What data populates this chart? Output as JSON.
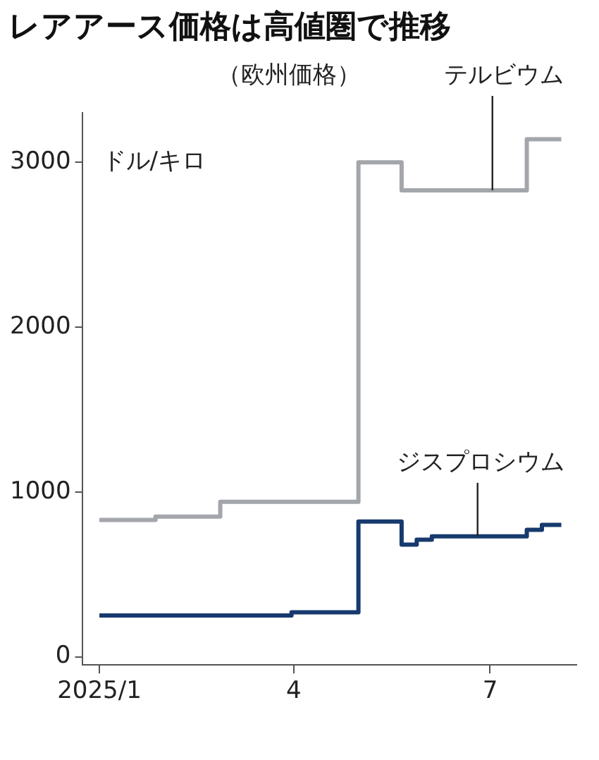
{
  "chart_data": {
    "type": "step",
    "title": "レアアース価格は高値圏で推移",
    "subtitle": "（欧州価格）",
    "ylabel": "ドル/キロ",
    "series": [
      {
        "name": "テルビウム",
        "color": "#a3a6aa",
        "x": [
          "2025-01-01",
          "2025-01-27",
          "2025-02-26",
          "2025-05-01",
          "2025-05-21",
          "2025-07-18",
          "2025-08-03"
        ],
        "values": [
          830,
          850,
          940,
          3000,
          2830,
          3140,
          3140
        ]
      },
      {
        "name": "ジスプロシウム",
        "color": "#173a6e",
        "x": [
          "2025-01-01",
          "2025-03-31",
          "2025-05-01",
          "2025-05-21",
          "2025-05-28",
          "2025-06-04",
          "2025-07-18",
          "2025-07-25",
          "2025-08-03"
        ],
        "values": [
          250,
          270,
          820,
          680,
          710,
          730,
          770,
          800,
          800
        ]
      }
    ],
    "xlim": [
      "2024-12-24",
      "2025-08-10"
    ],
    "xticks": [
      {
        "value": "2025-01-01",
        "label": "2025/1"
      },
      {
        "value": "2025-04-01",
        "label": "4"
      },
      {
        "value": "2025-07-01",
        "label": "7"
      }
    ],
    "ylim": [
      -50,
      3300
    ],
    "yticks": [
      0,
      1000,
      2000,
      3000
    ],
    "grid": false,
    "legend": false
  }
}
